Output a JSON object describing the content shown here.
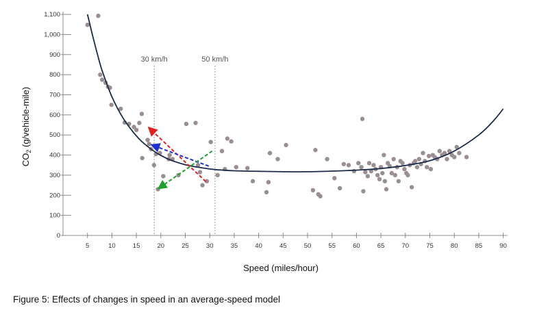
{
  "chart_data": {
    "type": "scatter",
    "title": "",
    "xlabel": "Speed (miles/hour)",
    "ylabel_parts": [
      "CO",
      "2",
      " (g/vehicle-mile)"
    ],
    "xlim": [
      0,
      90
    ],
    "ylim": [
      0,
      1100
    ],
    "xticks": [
      5,
      10,
      15,
      20,
      25,
      30,
      35,
      40,
      45,
      50,
      55,
      60,
      65,
      70,
      75,
      80,
      85,
      90
    ],
    "yticks": [
      0,
      100,
      200,
      300,
      400,
      500,
      600,
      700,
      800,
      900,
      1000,
      1100
    ],
    "ytick_labels": [
      "0",
      "100",
      "200",
      "300",
      "400",
      "500",
      "600",
      "700",
      "800",
      "900",
      "1,000",
      "1,100"
    ],
    "reference_lines": [
      {
        "x": 18.64,
        "label": "30 km/h"
      },
      {
        "x": 31.07,
        "label": "50 km/h"
      }
    ],
    "curve": {
      "x": [
        5,
        6,
        7,
        8,
        10,
        12,
        14,
        16,
        18,
        20,
        22,
        25,
        28,
        31,
        35,
        40,
        45,
        50,
        55,
        60,
        65,
        70,
        75,
        80,
        85,
        88,
        90
      ],
      "y": [
        1100,
        1000,
        905,
        820,
        690,
        595,
        525,
        470,
        430,
        398,
        375,
        352,
        338,
        328,
        322,
        319,
        317,
        317,
        320,
        325,
        333,
        348,
        372,
        420,
        500,
        570,
        630
      ]
    },
    "points": {
      "x": [
        5,
        7.2,
        7.6,
        8,
        8.7,
        9.2,
        9.6,
        9.9,
        11.8,
        12.6,
        13.5,
        14.5,
        15,
        15.6,
        16.1,
        16.2,
        17.3,
        17.6,
        18,
        18.6,
        19,
        19.4,
        19.8,
        20.5,
        21.6,
        21.8,
        22.4,
        23.6,
        25.2,
        27.1,
        27.6,
        28,
        28.5,
        29.4,
        30.2,
        31.6,
        32.5,
        33.1,
        33.6,
        34.4,
        35.4,
        37.7,
        38.8,
        41.6,
        42,
        42.3,
        43.9,
        45.6,
        51.1,
        51.6,
        52.2,
        52.6,
        54,
        55.5,
        56.6,
        57.4,
        58.4,
        59.5,
        60.4,
        61,
        61.2,
        61.4,
        61.8,
        62.3,
        62.6,
        63,
        63.5,
        63.9,
        64.3,
        64.7,
        65,
        65.3,
        65.6,
        65.8,
        66.1,
        66.4,
        66.8,
        67.2,
        67.6,
        67.9,
        68.3,
        68.6,
        69,
        69.4,
        69.8,
        70.2,
        70.5,
        70.9,
        71.3,
        71.7,
        72,
        72.4,
        72.8,
        73.2,
        73.6,
        74,
        74.4,
        74.8,
        75.2,
        75.6,
        76,
        76.5,
        77,
        77.5,
        78,
        78.5,
        79,
        79.5,
        80,
        80.5,
        81,
        82.5
      ],
      "y": [
        1048,
        1093,
        800,
        775,
        760,
        740,
        735,
        650,
        630,
        562,
        555,
        540,
        525,
        560,
        605,
        385,
        475,
        455,
        430,
        350,
        405,
        230,
        410,
        295,
        380,
        400,
        380,
        300,
        555,
        560,
        350,
        315,
        250,
        270,
        465,
        300,
        420,
        330,
        482,
        468,
        340,
        335,
        270,
        215,
        265,
        410,
        380,
        450,
        225,
        425,
        205,
        195,
        380,
        285,
        235,
        355,
        350,
        320,
        360,
        340,
        580,
        220,
        315,
        295,
        360,
        320,
        350,
        330,
        300,
        280,
        340,
        310,
        400,
        270,
        230,
        360,
        345,
        310,
        380,
        300,
        340,
        270,
        370,
        360,
        330,
        310,
        300,
        350,
        240,
        360,
        370,
        340,
        380,
        355,
        410,
        370,
        340,
        395,
        330,
        400,
        390,
        380,
        420,
        400,
        410,
        380,
        420,
        400,
        390,
        440,
        410,
        390
      ]
    },
    "point_color": "#9b8e93",
    "curve_color": "#1a2a4a",
    "arrows": [
      {
        "from": [
          29.2,
          268
        ],
        "to": [
          17.6,
          535
        ],
        "color": "#e02020"
      },
      {
        "from": [
          29.8,
          345
        ],
        "to": [
          18.2,
          450
        ],
        "color": "#2030cc"
      },
      {
        "from": [
          30.5,
          420
        ],
        "to": [
          19.6,
          235
        ],
        "color": "#20a030"
      }
    ],
    "grid": false,
    "legend": "none"
  },
  "caption": "Figure 5: Effects of changes in speed in an average-speed model"
}
